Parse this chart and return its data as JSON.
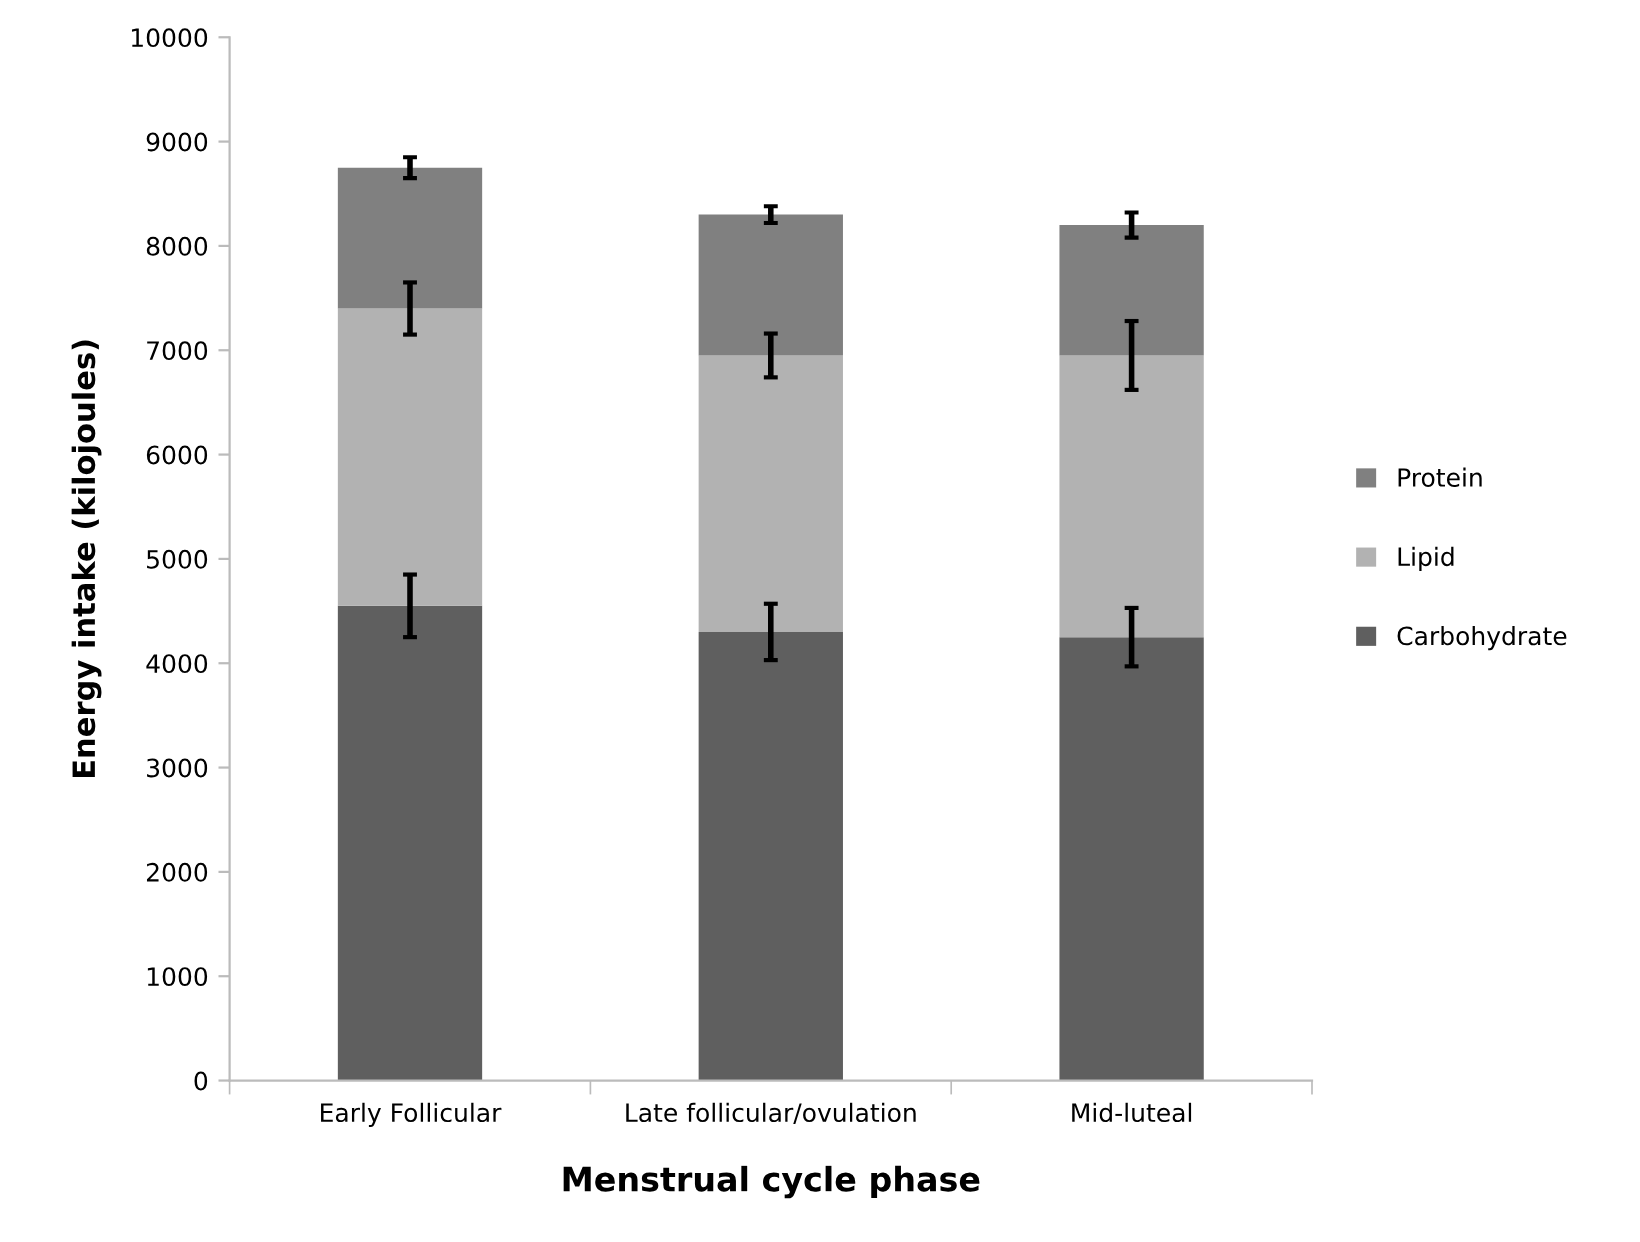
{
  "chart_data": {
    "type": "bar",
    "stacked": true,
    "xlabel": "Menstrual cycle phase",
    "ylabel": "Energy intake (kilojoules)",
    "categories": [
      "Early Follicular",
      "Late follicular/ovulation",
      "Mid-luteal"
    ],
    "series": [
      {
        "name": "Carbohydrate",
        "color": "#5f5f5f",
        "values": [
          4550,
          4300,
          4250
        ],
        "errors": [
          300,
          270,
          280
        ]
      },
      {
        "name": "Lipid",
        "color": "#b2b2b2",
        "values": [
          2850,
          2650,
          2700
        ],
        "errors": [
          250,
          210,
          330
        ]
      },
      {
        "name": "Protein",
        "color": "#808080",
        "values": [
          1350,
          1350,
          1250
        ],
        "errors": [
          100,
          80,
          120
        ]
      }
    ],
    "ylim": [
      0,
      10000
    ],
    "yticks": [
      0,
      1000,
      2000,
      3000,
      4000,
      5000,
      6000,
      7000,
      8000,
      9000,
      10000
    ],
    "grid": false,
    "legend": "right"
  }
}
